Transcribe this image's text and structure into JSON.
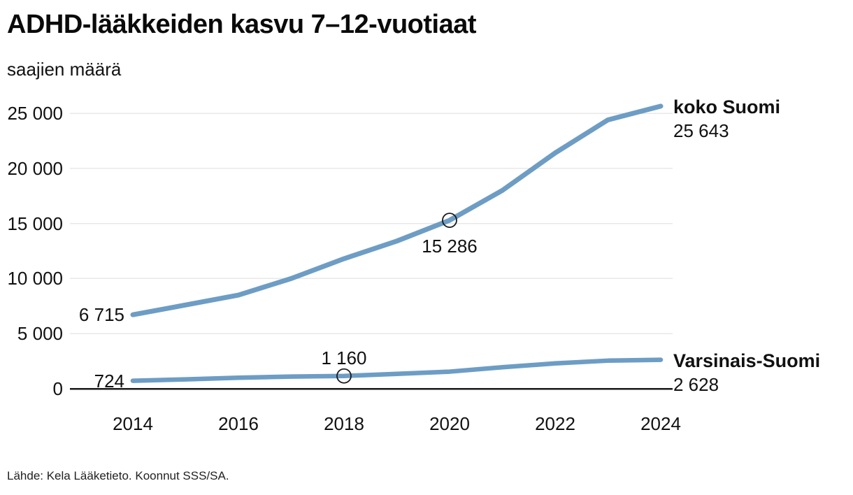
{
  "header": {
    "title": "ADHD-lääkkeiden kasvu 7–12-vuotiaat",
    "subtitle": "saajien määrä"
  },
  "footer": {
    "source": "Lähde: Kela Lääketieto. Koonnut SSS/SA."
  },
  "colors": {
    "line": "#6d9dc5",
    "grid": "#e8e8e8",
    "axis": "#1a1a1a",
    "text": "#111111"
  },
  "chart_data": {
    "type": "line",
    "title": "ADHD-lääkkeiden kasvu 7–12-vuotiaat",
    "ylabel": "saajien määrä",
    "x": [
      2014,
      2015,
      2016,
      2017,
      2018,
      2019,
      2020,
      2021,
      2022,
      2023,
      2024
    ],
    "xtick_labels": [
      "2014",
      "2016",
      "2018",
      "2020",
      "2022",
      "2024"
    ],
    "ytick_values": [
      0,
      5000,
      10000,
      15000,
      20000,
      25000
    ],
    "ytick_labels": [
      "0",
      "5 000",
      "10 000",
      "15 000",
      "20 000",
      "25 000"
    ],
    "ylim": [
      0,
      25000
    ],
    "grid": "horizontal",
    "legend_position": "right-of-line-ends",
    "series": [
      {
        "name": "koko Suomi",
        "values": [
          6715,
          7600,
          8500,
          10000,
          11800,
          13400,
          15286,
          18000,
          21400,
          24400,
          25643
        ],
        "first_label": "6 715",
        "end_label": "25 643",
        "marker": {
          "index": 6,
          "year": 2020,
          "label": "15 286",
          "label_position": "below"
        }
      },
      {
        "name": "Varsinais-Suomi",
        "values": [
          724,
          850,
          1000,
          1100,
          1160,
          1350,
          1550,
          1950,
          2300,
          2550,
          2628
        ],
        "first_label": "724",
        "end_label": "2 628",
        "marker": {
          "index": 4,
          "year": 2018,
          "label": "1 160",
          "label_position": "above"
        }
      }
    ]
  }
}
